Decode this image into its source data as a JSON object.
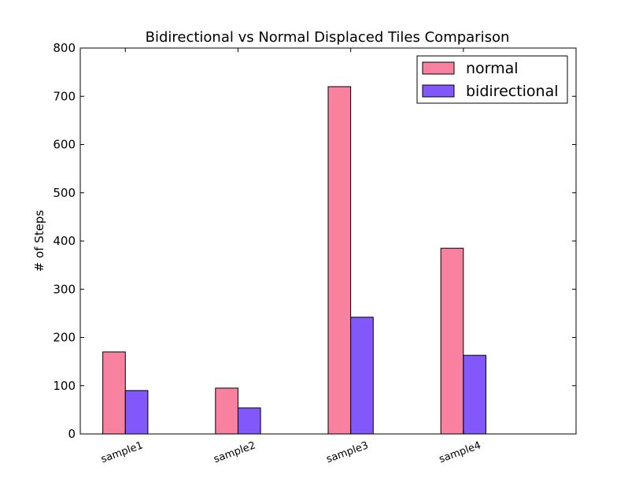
{
  "chart_data": {
    "type": "bar",
    "title": "Bidirectional vs Normal Displaced Tiles Comparison",
    "xlabel": "",
    "ylabel": "# of Steps",
    "categories": [
      "sample1",
      "sample2",
      "sample3",
      "sample4"
    ],
    "series": [
      {
        "name": "normal",
        "color": "#f7819f",
        "values": [
          170,
          95,
          720,
          385
        ]
      },
      {
        "name": "bidirectional",
        "color": "#8258fa",
        "values": [
          90,
          54,
          242,
          163
        ]
      }
    ],
    "ylim": [
      0,
      800
    ],
    "yticks": [
      0,
      100,
      200,
      300,
      400,
      500,
      600,
      700,
      800
    ],
    "grid": false,
    "legend_position": "top-right"
  }
}
